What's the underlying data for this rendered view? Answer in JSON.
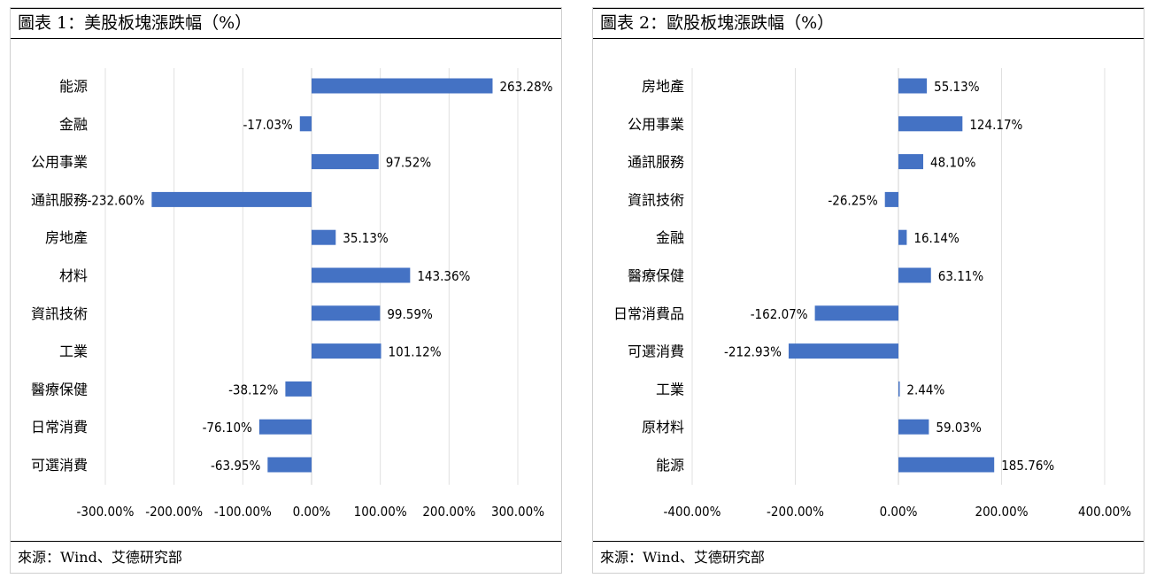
{
  "panels": [
    {
      "title": "圖表 1：美股板塊漲跌幅（%）",
      "source": "來源：Wind、艾德研究部"
    },
    {
      "title": "圖表 2：歐股板塊漲跌幅（%）",
      "source": "來源：Wind、艾德研究部"
    }
  ],
  "chart_data": [
    {
      "type": "bar",
      "orientation": "horizontal",
      "categories": [
        "能源",
        "金融",
        "公用事業",
        "通訊服務",
        "房地產",
        "材料",
        "資訊技術",
        "工業",
        "醫療保健",
        "日常消費",
        "可選消費"
      ],
      "values": [
        263.28,
        -17.03,
        97.52,
        -232.6,
        35.13,
        143.36,
        99.59,
        101.12,
        -38.12,
        -76.1,
        -63.95
      ],
      "value_labels": [
        "263.28%",
        "-17.03%",
        "97.52%",
        "-232.60%",
        "35.13%",
        "143.36%",
        "99.59%",
        "101.12%",
        "-38.12%",
        "-76.10%",
        "-63.95%"
      ],
      "xlim": [
        -300,
        300
      ],
      "xticks": [
        -300,
        -200,
        -100,
        0,
        100,
        200,
        300
      ],
      "xtick_labels": [
        "-300.00%",
        "-200.00%",
        "-100.00%",
        "0.00%",
        "100.00%",
        "200.00%",
        "300.00%"
      ],
      "grid": true,
      "bar_color": "#4472C4"
    },
    {
      "type": "bar",
      "orientation": "horizontal",
      "categories": [
        "房地產",
        "公用事業",
        "通訊服務",
        "資訊技術",
        "金融",
        "醫療保健",
        "日常消費品",
        "可選消費",
        "工業",
        "原材料",
        "能源"
      ],
      "values": [
        55.13,
        124.17,
        48.1,
        -26.25,
        16.14,
        63.11,
        -162.07,
        -212.93,
        2.44,
        59.03,
        185.76
      ],
      "value_labels": [
        "55.13%",
        "124.17%",
        "48.10%",
        "-26.25%",
        "16.14%",
        "63.11%",
        "-162.07%",
        "-212.93%",
        "2.44%",
        "59.03%",
        "185.76%"
      ],
      "xlim": [
        -400,
        400
      ],
      "xticks": [
        -400,
        -200,
        0,
        200,
        400
      ],
      "xtick_labels": [
        "-400.00%",
        "-200.00%",
        "0.00%",
        "200.00%",
        "400.00%"
      ],
      "grid": true,
      "bar_color": "#4472C4"
    }
  ]
}
